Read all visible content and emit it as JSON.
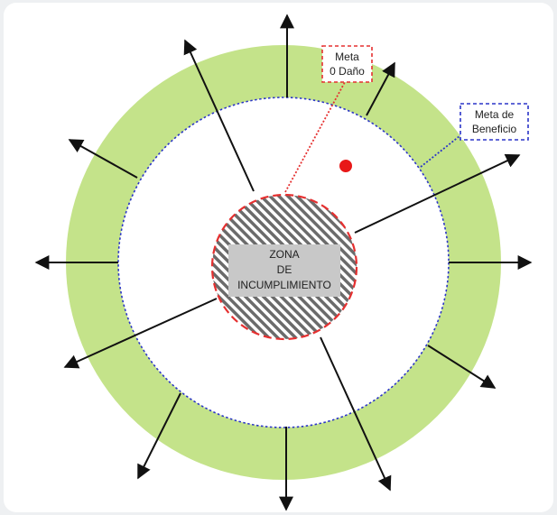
{
  "diagram": {
    "center_label_lines": [
      "ZONA",
      "DE",
      "INCUMPLIMIENTO"
    ],
    "callout_harm": {
      "lines": [
        "Meta",
        "0 Daño"
      ],
      "border_color": "#e53030"
    },
    "callout_benefit": {
      "lines": [
        "Meta de",
        "Beneficio"
      ],
      "border_color": "#2b35c8"
    },
    "colors": {
      "outer_ring": "#c4e38a",
      "inner_disk": "#ffffff",
      "benefit_circle": "#2b35c8",
      "harm_circle": "#e53030",
      "hatch_dark": "#6b6b6b",
      "hatch_light": "#ffffff",
      "label_box": "#c8c8c8",
      "arrows": "#111111",
      "marker_dot": "#e81818"
    }
  }
}
